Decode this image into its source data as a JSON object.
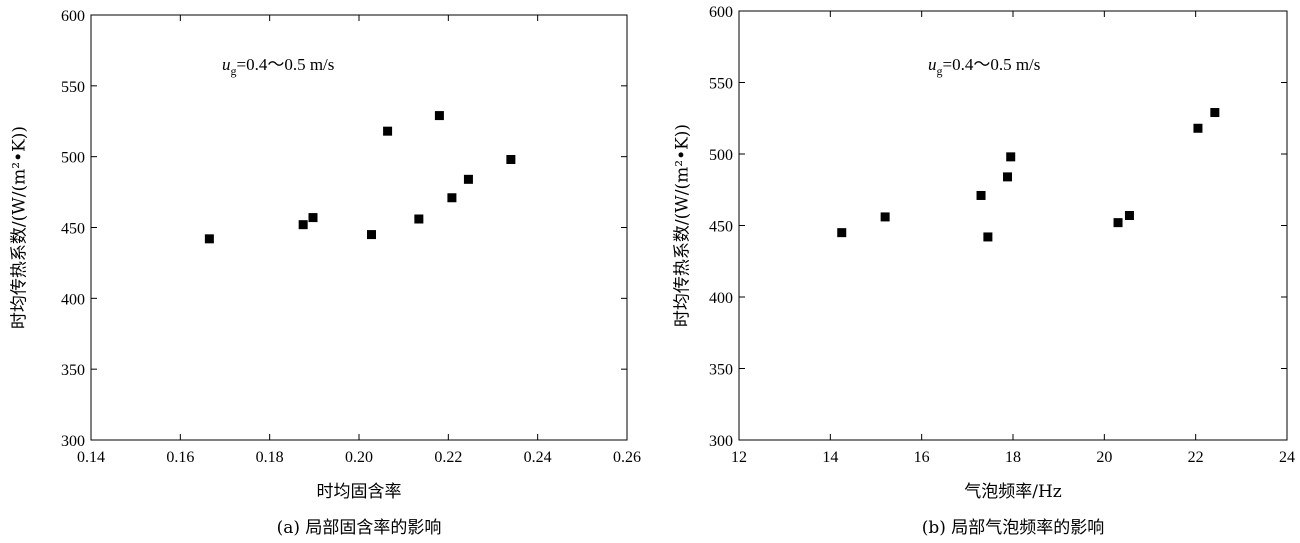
{
  "chart_data": [
    {
      "type": "scatter",
      "caption": "(a) 局部固含率的影响",
      "xlabel": "时均固含率",
      "ylabel": "时均传热系数/(W/(m²•K))",
      "annotation": {
        "var": "u",
        "sub": "g",
        "text": "=0.4～0.5 m/s"
      },
      "xlim": [
        0.14,
        0.26
      ],
      "ylim": [
        300,
        600
      ],
      "xticks": [
        "0.14",
        "0.16",
        "0.18",
        "0.20",
        "0.22",
        "0.24",
        "0.26"
      ],
      "yticks": [
        "300",
        "350",
        "400",
        "450",
        "500",
        "550",
        "600"
      ],
      "x": [
        0.1665,
        0.1875,
        0.1897,
        0.2028,
        0.2064,
        0.2134,
        0.218,
        0.2208,
        0.2245,
        0.234
      ],
      "y": [
        442,
        452,
        457,
        445,
        518,
        456,
        529,
        471,
        484,
        498
      ]
    },
    {
      "type": "scatter",
      "caption": "(b) 局部气泡频率的影响",
      "xlabel": "气泡频率/Hz",
      "ylabel": "时均传热系数/(W/(m²•K))",
      "annotation": {
        "var": "u",
        "sub": "g",
        "text": "=0.4～0.5 m/s"
      },
      "xlim": [
        12,
        24
      ],
      "ylim": [
        300,
        600
      ],
      "xticks": [
        "12",
        "14",
        "16",
        "18",
        "20",
        "22",
        "24"
      ],
      "yticks": [
        "300",
        "350",
        "400",
        "450",
        "500",
        "550",
        "600"
      ],
      "x": [
        14.25,
        15.2,
        17.3,
        17.45,
        17.88,
        17.95,
        20.3,
        20.55,
        22.05,
        22.42
      ],
      "y": [
        445,
        456,
        471,
        442,
        484,
        498,
        452,
        457,
        518,
        529
      ]
    }
  ]
}
